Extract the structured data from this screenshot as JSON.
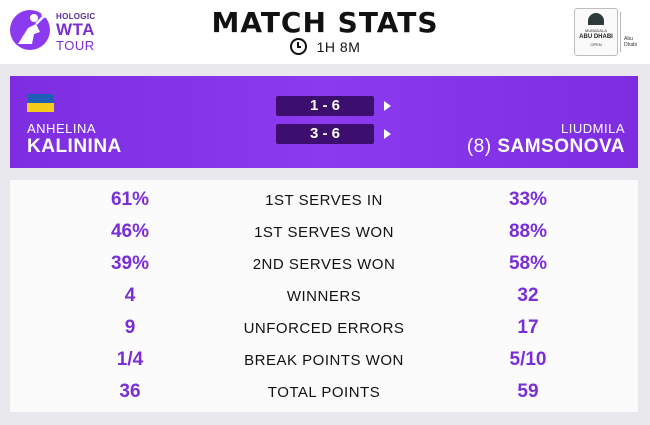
{
  "brand": {
    "line1": "HOLOGIC",
    "line2": "WTA",
    "line3": "TOUR",
    "accent_color": "#7b2fd0"
  },
  "header": {
    "title": "MATCH STATS",
    "duration_icon": "clock-icon",
    "duration": "1H 8M"
  },
  "sponsor": {
    "line1": "MUBADALA",
    "line2": "ABU DHABI",
    "line3": "OPEN",
    "side_text": "Abu Dhabi"
  },
  "score": {
    "panel_color": "#8b3af0",
    "player1": {
      "flag": "ukraine-flag",
      "first_name": "ANHELINA",
      "last_name": "KALININA"
    },
    "player2": {
      "seed": "(8)",
      "first_name": "LIUDMILA",
      "last_name": "SAMSONOVA"
    },
    "sets": [
      "1 - 6",
      "3 - 6"
    ]
  },
  "stats": [
    {
      "left": "61%",
      "label": "1ST SERVES IN",
      "right": "33%"
    },
    {
      "left": "46%",
      "label": "1ST SERVES WON",
      "right": "88%"
    },
    {
      "left": "39%",
      "label": "2ND SERVES WON",
      "right": "58%"
    },
    {
      "left": "4",
      "label": "WINNERS",
      "right": "32"
    },
    {
      "left": "9",
      "label": "UNFORCED ERRORS",
      "right": "17"
    },
    {
      "left": "1/4",
      "label": "BREAK POINTS WON",
      "right": "5/10"
    },
    {
      "left": "36",
      "label": "TOTAL POINTS",
      "right": "59"
    }
  ]
}
